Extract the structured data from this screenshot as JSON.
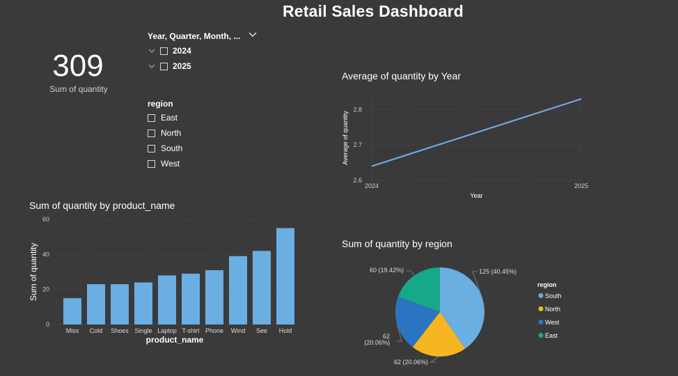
{
  "dashboard": {
    "title": "Retail Sales Dashboard"
  },
  "kpi": {
    "value": "309",
    "label": "Sum of quantity"
  },
  "date_slicer": {
    "header": "Year, Quarter, Month, ...",
    "items": [
      {
        "label": "2024"
      },
      {
        "label": "2025"
      }
    ]
  },
  "region_slicer": {
    "header": "region",
    "items": [
      {
        "label": "East"
      },
      {
        "label": "North"
      },
      {
        "label": "South"
      },
      {
        "label": "West"
      }
    ]
  },
  "chart_data": [
    {
      "type": "line",
      "title": "Average of quantity by Year",
      "xlabel": "Year",
      "ylabel": "Average of quantity",
      "x": [
        "2024",
        "2025"
      ],
      "series": [
        {
          "values": [
            2.64,
            2.83
          ]
        }
      ],
      "yticks": [
        "2.6",
        "2.7",
        "2.8"
      ],
      "ylim": [
        2.6,
        2.84
      ],
      "grid": true,
      "color": "#6fa8dc"
    },
    {
      "type": "bar",
      "title": "Sum of quantity by product_name",
      "xlabel": "product_name",
      "ylabel": "Sum of quantity",
      "categories": [
        "Miss",
        "Cold",
        "Shoes",
        "Single",
        "Laptop",
        "T-shirt",
        "Phone",
        "Wind",
        "See",
        "Hold"
      ],
      "values": [
        15,
        23,
        23,
        24,
        28,
        29,
        31,
        39,
        42,
        55
      ],
      "yticks": [
        "0",
        "20",
        "40",
        "60"
      ],
      "ylim": [
        0,
        60
      ],
      "grid": true,
      "color": "#6aaee2"
    },
    {
      "type": "pie",
      "title": "Sum of quantity by region",
      "legend_title": "region",
      "legend_position": "right",
      "slices": [
        {
          "name": "South",
          "value": 125,
          "label": "125 (40.45%)",
          "color": "#6aaee2"
        },
        {
          "name": "North",
          "value": 62,
          "label": "62 (20.06%)",
          "color": "#f5b622"
        },
        {
          "name": "West",
          "value": 62,
          "label_lines": [
            "62",
            "(20.06%)"
          ],
          "color": "#2b74c1"
        },
        {
          "name": "East",
          "value": 60,
          "label": "60 (19.42%)",
          "color": "#16a888"
        }
      ]
    }
  ]
}
